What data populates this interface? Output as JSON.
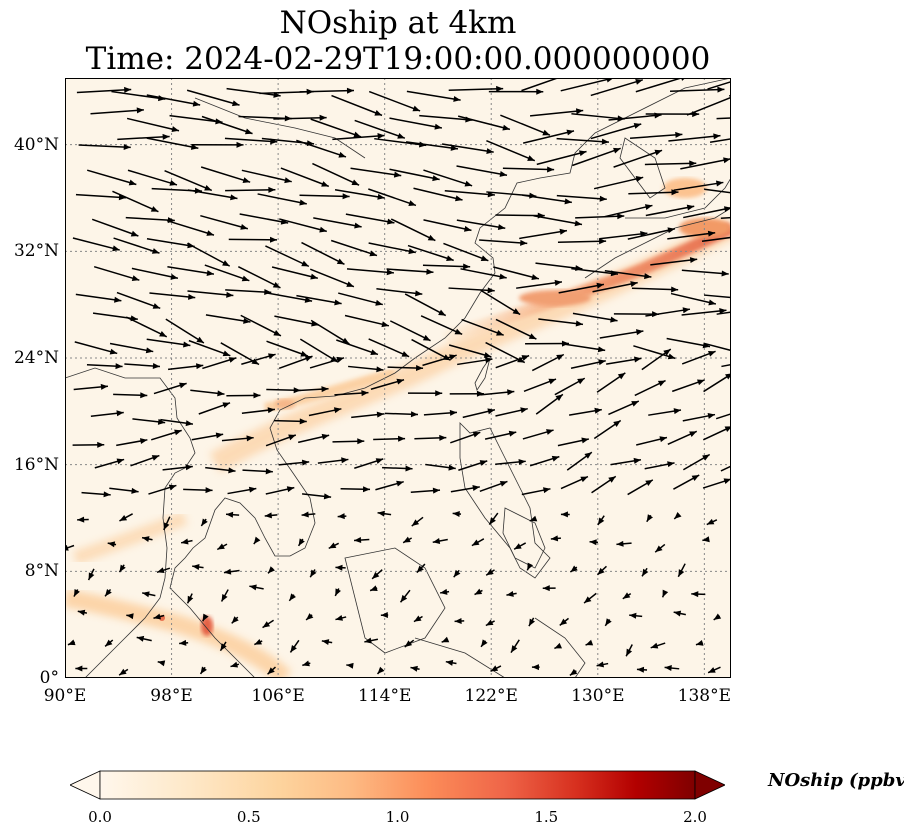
{
  "title_line1": "NOship at 4km",
  "title_line2": "Time: 2024-02-29T19:00:00.000000000",
  "map": {
    "extent": {
      "lon_min": 90,
      "lon_max": 140,
      "lat_min": 0,
      "lat_max": 45
    },
    "lon_ticks": [
      {
        "value": 90,
        "label": "90°E"
      },
      {
        "value": 98,
        "label": "98°E"
      },
      {
        "value": 106,
        "label": "106°E"
      },
      {
        "value": 114,
        "label": "114°E"
      },
      {
        "value": 122,
        "label": "122°E"
      },
      {
        "value": 130,
        "label": "130°E"
      },
      {
        "value": 138,
        "label": "138°E"
      }
    ],
    "lat_ticks": [
      {
        "value": 0,
        "label": "0°"
      },
      {
        "value": 8,
        "label": "8°N"
      },
      {
        "value": 16,
        "label": "16°N"
      },
      {
        "value": 24,
        "label": "24°N"
      },
      {
        "value": 32,
        "label": "32°N"
      },
      {
        "value": 40,
        "label": "40°N"
      }
    ],
    "gridlines": true
  },
  "colorbar": {
    "label": "NOship (ppbv)",
    "min": 0.0,
    "max": 2.0,
    "ticks": [
      {
        "value": 0.0,
        "label": "0.0"
      },
      {
        "value": 0.5,
        "label": "0.5"
      },
      {
        "value": 1.0,
        "label": "1.0"
      },
      {
        "value": 1.5,
        "label": "1.5"
      },
      {
        "value": 2.0,
        "label": "2.0"
      }
    ],
    "colormap": "OrRd",
    "extend": "both"
  },
  "colors": {
    "background": "#fdf5e8",
    "coast": "#333333",
    "grid": "#888888",
    "arrow": "#000000"
  }
}
